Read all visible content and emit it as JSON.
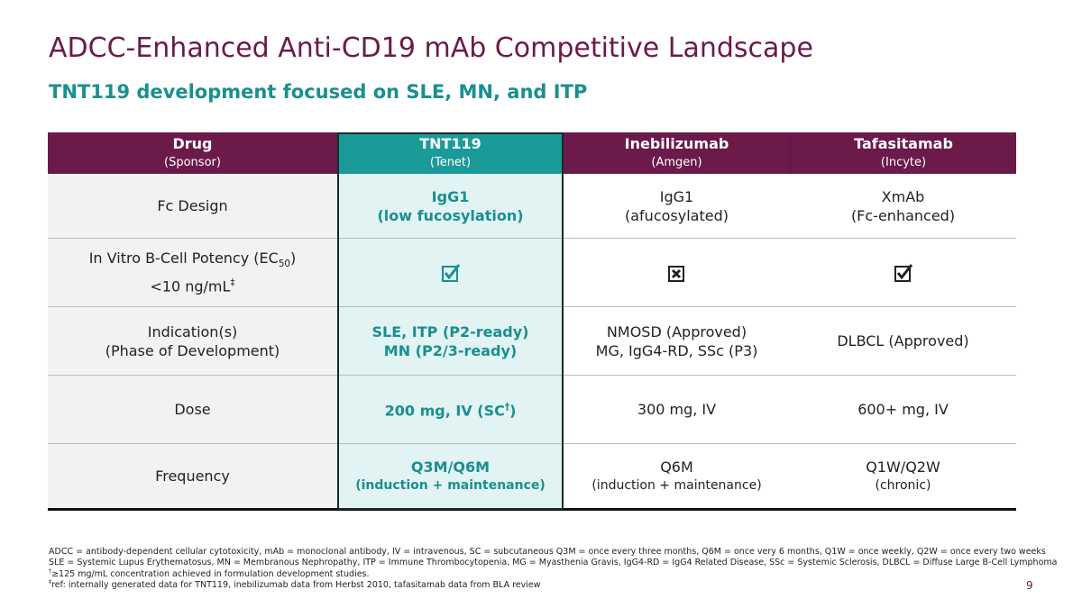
{
  "header": {
    "title": "ADCC-Enhanced Anti-CD19 mAb Competitive Landscape",
    "subtitle": "TNT119 development focused on SLE, MN, and ITP"
  },
  "table": {
    "columns": [
      {
        "name": "Drug",
        "sponsor": "(Sponsor)"
      },
      {
        "name": "TNT119",
        "sponsor": "(Tenet)"
      },
      {
        "name": "Inebilizumab",
        "sponsor": "(Amgen)"
      },
      {
        "name": "Tafasitamab",
        "sponsor": "(Incyte)"
      }
    ],
    "highlight_column": 1,
    "rows": [
      {
        "label": [
          "Fc Design"
        ],
        "values": [
          [
            "IgG1",
            "(low fucosylation)"
          ],
          [
            "IgG1",
            "(afucosylated)"
          ],
          [
            "XmAb",
            "(Fc-enhanced)"
          ]
        ]
      },
      {
        "label": [
          [
            "In Vitro B-Cell Potency (EC",
            {
              "sub": "50"
            },
            ")"
          ],
          [
            "<10 ng/mL",
            {
              "sup": "‡"
            }
          ]
        ],
        "values": [
          true,
          false,
          true
        ]
      },
      {
        "label": [
          "Indication(s)",
          "(Phase of Development)"
        ],
        "values": [
          [
            "SLE, ITP (P2-ready)",
            "MN (P2/3-ready)"
          ],
          [
            "NMOSD (Approved)",
            "MG, IgG4-RD, SSc (P3)"
          ],
          [
            "DLBCL (Approved)"
          ]
        ]
      },
      {
        "label": [
          "Dose"
        ],
        "values": [
          [
            [
              "200 mg, IV (SC",
              {
                "sup": "†"
              },
              ")"
            ]
          ],
          [
            "300 mg, IV"
          ],
          [
            "600+ mg, IV"
          ]
        ]
      },
      {
        "label": [
          "Frequency"
        ],
        "values": [
          [
            "Q3M/Q6M",
            "(induction + maintenance)"
          ],
          [
            "Q6M",
            "(induction + maintenance)"
          ],
          [
            "Q1W/Q2W",
            "(chronic)"
          ]
        ]
      }
    ]
  },
  "footnotes": [
    [
      "ADCC = antibody-dependent cellular cytotoxicity, mAb = monoclonal antibody, IV = intravenous, SC = subcutaneous Q3M = once every three months, Q6M = once very 6 months, Q1W = once weekly, Q2W = once every two weeks"
    ],
    [
      "SLE = Systemic Lupus Erythematosus, MN = Membranous Nephropathy, ITP = Immune Thrombocytopenia, MG = Myasthenia Gravis, IgG4-RD = IgG4 Related Disease, SSc = Systemic Sclerosis, DLBCL = Diffuse Large B-Cell Lymphoma"
    ],
    [
      {
        "sup": "†"
      },
      "≥125 mg/mL concentration achieved in formulation development studies."
    ],
    [
      {
        "sup": "‡"
      },
      "ref: internally generated data for TNT119, inebilizumab data from Herbst 2010, tafasitamab data from BLA review"
    ]
  ],
  "page_number": "9"
}
